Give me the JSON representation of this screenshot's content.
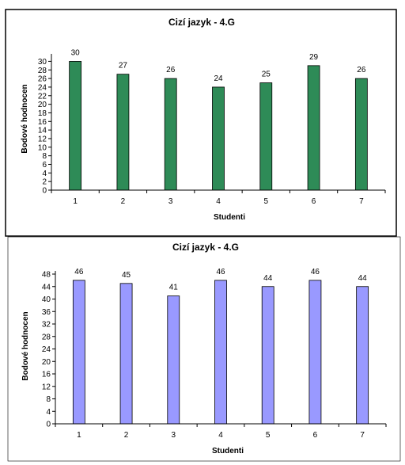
{
  "chart_data": [
    {
      "type": "bar",
      "title": "Cizí jazyk - 4.G",
      "xlabel": "Studenti",
      "ylabel": "Bodové hodnocen",
      "categories": [
        "1",
        "2",
        "3",
        "4",
        "5",
        "6",
        "7"
      ],
      "values": [
        30,
        27,
        26,
        24,
        25,
        29,
        26
      ],
      "yticks": [
        0,
        2,
        4,
        6,
        8,
        10,
        12,
        14,
        16,
        18,
        20,
        22,
        24,
        26,
        28,
        30
      ],
      "ylim": [
        0,
        31
      ],
      "bar_color": "#2e8b57",
      "grid": false,
      "legend": "none"
    },
    {
      "type": "bar",
      "title": "Cizí jazyk - 4.G",
      "xlabel": "Studenti",
      "ylabel": "Bodové hodnocen",
      "categories": [
        "1",
        "2",
        "3",
        "4",
        "5",
        "6",
        "7"
      ],
      "values": [
        46,
        45,
        41,
        46,
        44,
        46,
        44
      ],
      "yticks": [
        0,
        4,
        8,
        12,
        16,
        20,
        24,
        28,
        32,
        36,
        40,
        44,
        48
      ],
      "ylim": [
        0,
        48
      ],
      "bar_color": "#9999ff",
      "grid": false,
      "legend": "none"
    }
  ]
}
